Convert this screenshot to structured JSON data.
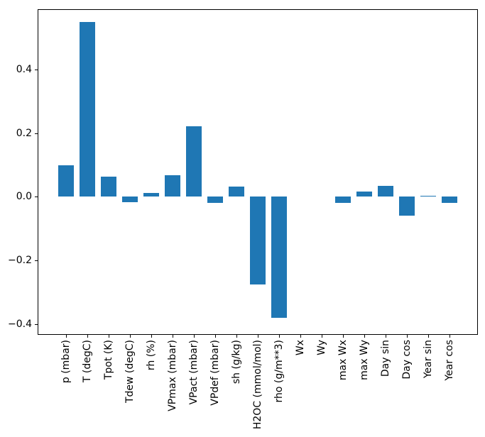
{
  "chart_data": {
    "type": "bar",
    "title": "",
    "xlabel": "",
    "ylabel": "",
    "categories": [
      "p (mbar)",
      "T (degC)",
      "Tpot (K)",
      "Tdew (degC)",
      "rh (%)",
      "VPmax (mbar)",
      "VPact (mbar)",
      "VPdef (mbar)",
      "sh (g/kg)",
      "H2OC (mmol/mol)",
      "rho (g/m**3)",
      "Wx",
      "Wy",
      "max Wx",
      "max Wy",
      "Day sin",
      "Day cos",
      "Year sin",
      "Year cos"
    ],
    "values": [
      0.1,
      0.551,
      0.064,
      -0.016,
      0.013,
      0.069,
      0.221,
      -0.02,
      0.033,
      -0.276,
      -0.381,
      0.0,
      0.0,
      -0.019,
      0.017,
      0.035,
      -0.06,
      0.003,
      -0.018
    ],
    "ylim": [
      -0.432,
      0.588
    ],
    "yticks": [
      0.4,
      0.2,
      0.0,
      -0.2,
      -0.4
    ],
    "ytick_labels": [
      "0.4",
      "0.2",
      "0.0",
      "−0.2",
      "−0.4"
    ],
    "bar_color": "#1f77b4",
    "axis_color": "#000000",
    "background_color": "#ffffff",
    "grid": false,
    "legend": null
  }
}
